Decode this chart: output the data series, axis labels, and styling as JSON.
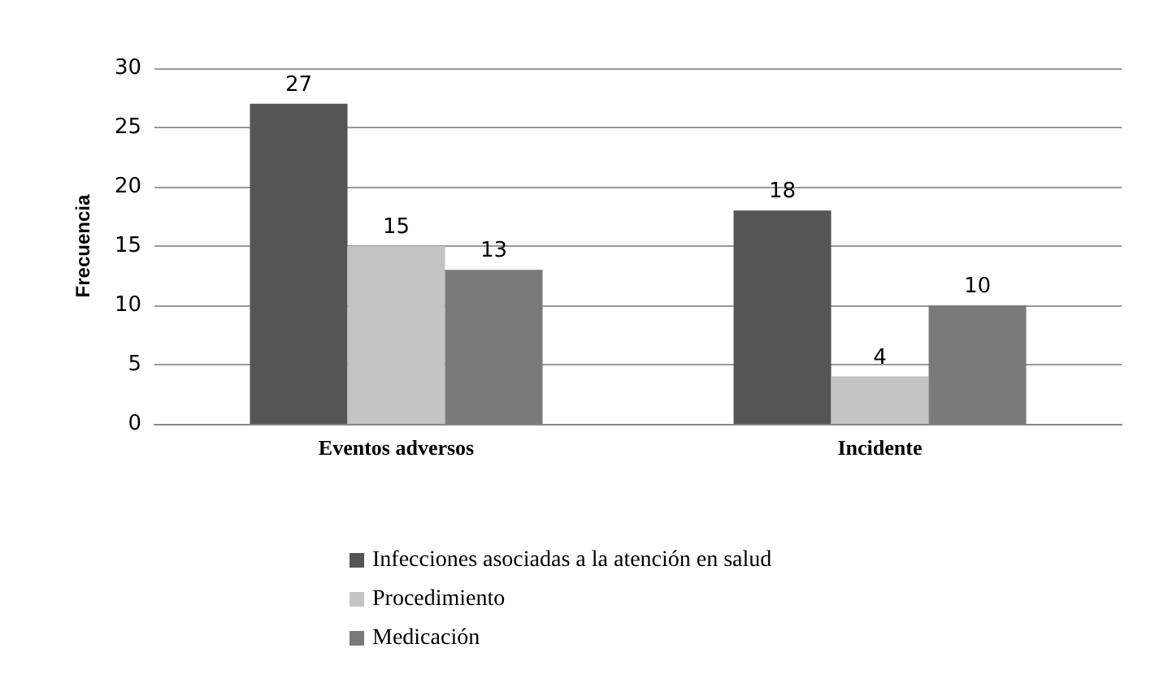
{
  "chart_data": {
    "type": "bar",
    "ylabel": "Frecuencia",
    "categories": [
      "Eventos adversos",
      "Incidente"
    ],
    "series": [
      {
        "name": "Infecciones asociadas a la atención en salud",
        "color": "#555555",
        "values": [
          27,
          18
        ]
      },
      {
        "name": "Procedimiento",
        "color": "#c4c4c4",
        "values": [
          15,
          4
        ]
      },
      {
        "name": "Medicación",
        "color": "#7a7a7a",
        "values": [
          13,
          10
        ]
      }
    ],
    "ylim": [
      0,
      30
    ],
    "yticks": [
      0,
      5,
      10,
      15,
      20,
      25,
      30
    ],
    "grid": "y",
    "legend": "bottom",
    "data_labels": true
  }
}
